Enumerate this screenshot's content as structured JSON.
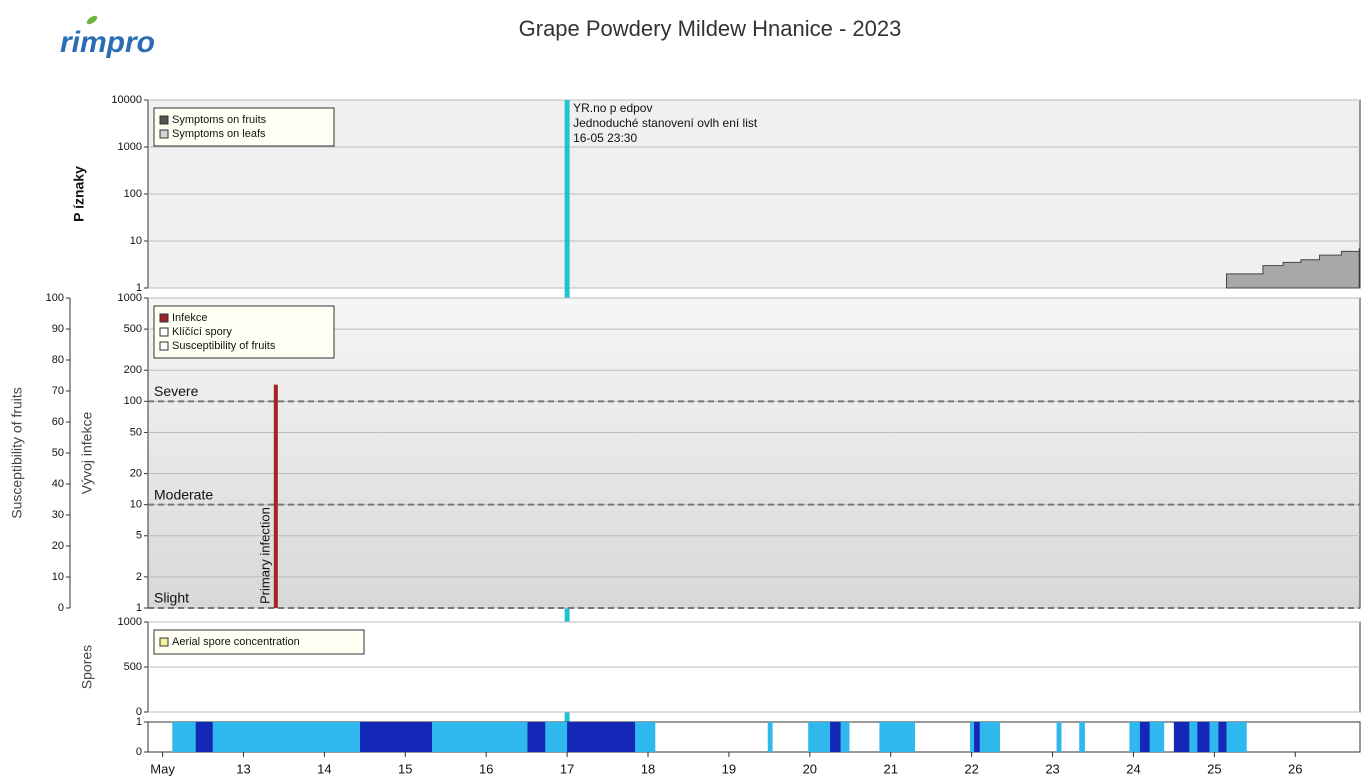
{
  "header": {
    "logo": "rimpro",
    "title": "Grape Powdery Mildew  Hnanice - 2023"
  },
  "chart_data": [
    {
      "type": "area",
      "ylabel": "P íznaky",
      "log": true,
      "grid": true,
      "xlim": [
        11.82,
        26.8
      ],
      "ylim": [
        1,
        10000
      ],
      "yticks": [
        1,
        10,
        100,
        1000,
        10000
      ],
      "series": [
        {
          "name": "Symptoms on fruits",
          "color": "#a8a8a8",
          "x": [
            25.15,
            25.6,
            25.85,
            26.07,
            26.3,
            26.57,
            26.79
          ],
          "values": [
            2,
            3,
            3.5,
            4,
            5,
            6,
            7
          ]
        },
        {
          "name": "Symptoms on leafs",
          "color": "#d4d4d4",
          "x": [],
          "values": []
        }
      ],
      "forecast": {
        "x": 17.0,
        "color": "#1fc4d4",
        "lines": [
          "YR.no p edpov",
          "Jednoduché stanovení ovlh ení list",
          "16-05 23:30"
        ]
      }
    },
    {
      "type": "bar",
      "ylabel": "Vývoj infekce",
      "log": true,
      "grid": true,
      "xlim": [
        11.82,
        26.8
      ],
      "ylim": [
        1,
        1000
      ],
      "yticks": [
        1,
        2,
        5,
        10,
        20,
        50,
        100,
        200,
        500,
        1000
      ],
      "y2label": "Susceptibility of fruits",
      "y2lim": [
        0,
        100
      ],
      "y2ticks": [
        0,
        10,
        20,
        30,
        40,
        50,
        60,
        70,
        80,
        90,
        100
      ],
      "series": [
        {
          "name": "Infekce",
          "color": "#a3222a",
          "x": [
            13.4
          ],
          "values": [
            145
          ],
          "labels": [
            "Primary infection"
          ]
        },
        {
          "name": "Klíčící spory",
          "color": "#ffffff",
          "x": [],
          "values": []
        },
        {
          "name": "Susceptibility of fruits",
          "color": "#ffffff",
          "axis": "y2",
          "x": [],
          "values": []
        }
      ],
      "thresholds": [
        {
          "value": 100,
          "label": "Severe"
        },
        {
          "value": 10,
          "label": "Moderate"
        },
        {
          "value": 1,
          "label": "Slight"
        }
      ]
    },
    {
      "type": "line",
      "ylabel": "Spores",
      "grid": true,
      "xlim": [
        11.82,
        26.8
      ],
      "ylim": [
        0,
        1000
      ],
      "yticks": [
        0,
        500,
        1000
      ],
      "series": [
        {
          "name": "Aerial spore concentration",
          "color": "#f4f4a0",
          "x": [],
          "values": []
        }
      ]
    },
    {
      "type": "strip",
      "xlim": [
        11.82,
        26.8
      ],
      "ylim": [
        0,
        1
      ],
      "yticks": [
        0,
        1
      ],
      "xticks": [
        {
          "value": 12,
          "label": "May"
        },
        13,
        14,
        15,
        16,
        17,
        18,
        19,
        20,
        21,
        22,
        23,
        24,
        25,
        26
      ],
      "periods": [
        {
          "x": [
            12.12,
            18.09
          ],
          "color": "#2fb8ee"
        },
        {
          "x": [
            19.48,
            19.54
          ],
          "color": "#2fb8ee"
        },
        {
          "x": [
            19.98,
            20.49
          ],
          "color": "#2fb8ee"
        },
        {
          "x": [
            20.86,
            21.3
          ],
          "color": "#2fb8ee"
        },
        {
          "x": [
            21.98,
            22.35
          ],
          "color": "#2fb8ee"
        },
        {
          "x": [
            23.05,
            23.11
          ],
          "color": "#2fb8ee"
        },
        {
          "x": [
            23.33,
            23.4
          ],
          "color": "#2fb8ee"
        },
        {
          "x": [
            23.95,
            24.38
          ],
          "color": "#2fb8ee"
        },
        {
          "x": [
            24.5,
            25.4
          ],
          "color": "#2fb8ee"
        },
        {
          "x": [
            12.41,
            12.62
          ],
          "color": "#1428b8"
        },
        {
          "x": [
            14.44,
            15.33
          ],
          "color": "#1428b8"
        },
        {
          "x": [
            16.51,
            16.73
          ],
          "color": "#1428b8"
        },
        {
          "x": [
            17.0,
            17.84
          ],
          "color": "#1428b8"
        },
        {
          "x": [
            20.25,
            20.38
          ],
          "color": "#1428b8"
        },
        {
          "x": [
            22.03,
            22.1
          ],
          "color": "#1428b8"
        },
        {
          "x": [
            24.08,
            24.2
          ],
          "color": "#1428b8"
        },
        {
          "x": [
            24.5,
            24.69
          ],
          "color": "#1428b8"
        },
        {
          "x": [
            24.79,
            24.94
          ],
          "color": "#1428b8"
        },
        {
          "x": [
            25.05,
            25.15
          ],
          "color": "#1428b8"
        }
      ]
    }
  ]
}
